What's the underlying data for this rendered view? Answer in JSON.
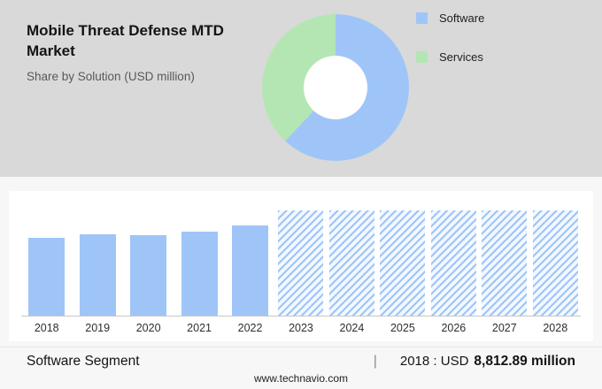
{
  "header": {
    "title": "Mobile Threat Defense MTD Market",
    "subtitle": "Share by Solution (USD million)"
  },
  "legend": {
    "items": [
      {
        "label": "Software",
        "color": "#9fc5f8"
      },
      {
        "label": "Services",
        "color": "#b4e6b4"
      }
    ]
  },
  "chart_data": [
    {
      "type": "pie",
      "donut": true,
      "title": "Share by Solution (USD million)",
      "labels": [
        "Software",
        "Services"
      ],
      "values": [
        62,
        38
      ],
      "colors": [
        "#9fc5f8",
        "#b4e6b4"
      ],
      "legend_position": "right"
    },
    {
      "type": "bar",
      "title": "Mobile Threat Defense MTD Market by year (USD million)",
      "categories": [
        "2018",
        "2019",
        "2020",
        "2021",
        "2022",
        "2023",
        "2024",
        "2025",
        "2026",
        "2027",
        "2028"
      ],
      "values": [
        8812.89,
        9230,
        9130,
        9540,
        10160,
        11930,
        11930,
        11930,
        11930,
        11930,
        11930
      ],
      "forecast_start_index": 5,
      "bar_color": "#9fc5f8",
      "xlabel": "",
      "ylabel": "",
      "ylim": [
        0,
        13000
      ],
      "grid": false,
      "annotation": "2018 : USD 8,812.89 million"
    }
  ],
  "stats": {
    "segment_label": "Software Segment",
    "separator": "|",
    "stat_prefix": "2018 : USD",
    "stat_value": "8,812.89 million"
  },
  "footer": {
    "website": "www.technavio.com"
  }
}
